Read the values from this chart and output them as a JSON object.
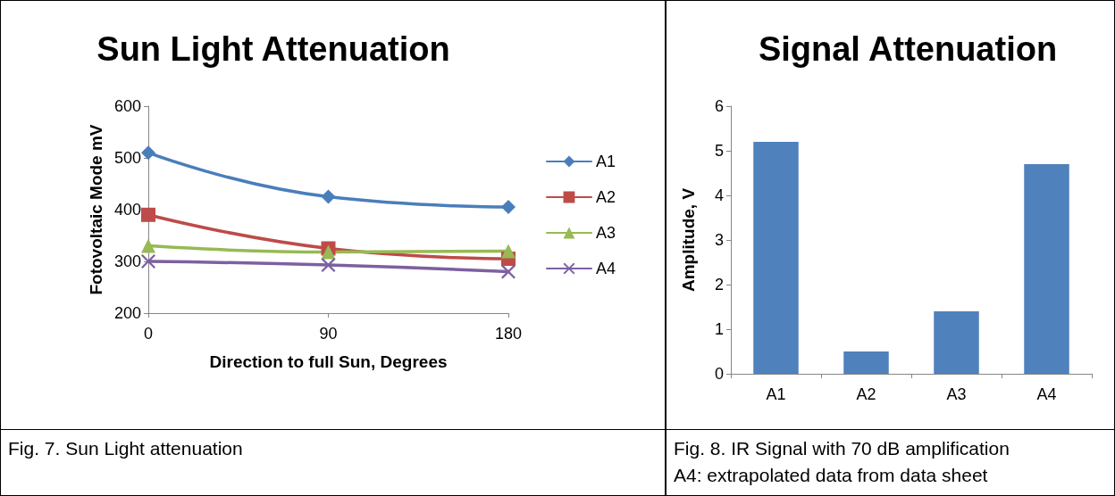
{
  "chart_data": [
    {
      "type": "line",
      "title": "Sun Light Attenuation",
      "xlabel": "Direction to full Sun, Degrees",
      "ylabel": "Fotovoltaic Mode mV",
      "categories": [
        "0",
        "90",
        "180"
      ],
      "ylim": [
        200,
        600
      ],
      "yticks": [
        200,
        300,
        400,
        500,
        600
      ],
      "grid": false,
      "legend": "right",
      "line_style": "solid",
      "series": [
        {
          "name": "A1",
          "color": "#4a7ebb",
          "marker": "diamond",
          "values": [
            510,
            425,
            405
          ]
        },
        {
          "name": "A2",
          "color": "#be4b48",
          "marker": "square",
          "values": [
            390,
            325,
            305
          ]
        },
        {
          "name": "A3",
          "color": "#98b954",
          "marker": "triangle",
          "values": [
            330,
            318,
            320
          ]
        },
        {
          "name": "A4",
          "color": "#7d60a0",
          "marker": "cross",
          "values": [
            300,
            293,
            280
          ]
        }
      ],
      "annotations": [
        "Fig. 7. Sun Light attenuation"
      ]
    },
    {
      "type": "bar",
      "title": "Signal Attenuation",
      "ylabel": "Amplitude, V",
      "categories": [
        "A1",
        "A2",
        "A3",
        "A4"
      ],
      "values": [
        5.2,
        0.5,
        1.4,
        4.7
      ],
      "color": "#4f81bd",
      "ylim": [
        0,
        6
      ],
      "yticks": [
        0,
        1,
        2,
        3,
        4,
        5,
        6
      ],
      "grid": false,
      "legend": false,
      "annotations": [
        "Fig. 8. IR Signal with 70 dB amplification",
        "A4: extrapolated data from data sheet"
      ]
    }
  ]
}
